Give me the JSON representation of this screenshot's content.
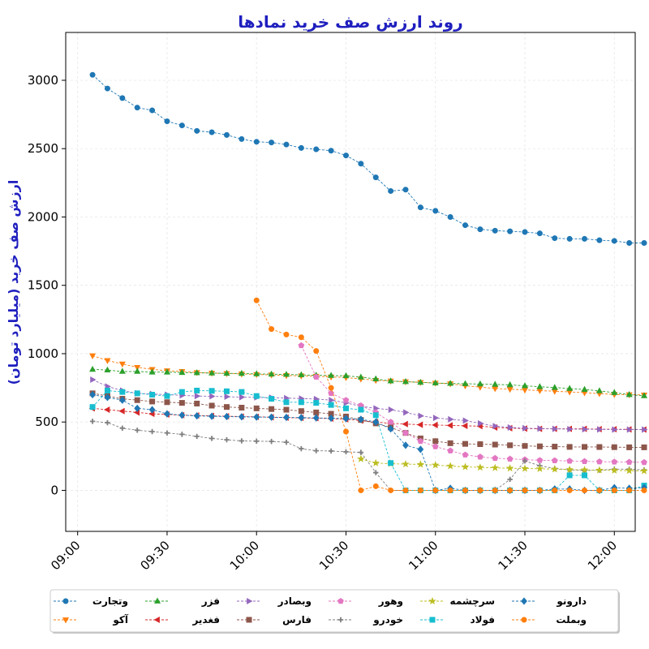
{
  "chart_data": {
    "type": "line",
    "title": "روند ارزش صف خرید نمادها",
    "ylabel": "ارزش صف خرید (میلیارد تومان)",
    "xlabel": "",
    "x_ticks": [
      "09:00",
      "09:30",
      "10:00",
      "10:30",
      "11:00",
      "11:30",
      "12:00"
    ],
    "y_ticks": [
      0,
      500,
      1000,
      1500,
      2000,
      2500,
      3000
    ],
    "xlim": [
      "08:56",
      "12:07"
    ],
    "ylim": [
      -300,
      3350
    ],
    "grid": true,
    "legend_position": "bottom",
    "series": [
      {
        "name": "وتجارت",
        "color": "#1f77b4",
        "marker": "circle",
        "x": [
          "09:05",
          "09:10",
          "09:15",
          "09:20",
          "09:25",
          "09:30",
          "09:35",
          "09:40",
          "09:45",
          "09:50",
          "09:55",
          "10:00",
          "10:05",
          "10:10",
          "10:15",
          "10:20",
          "10:25",
          "10:30",
          "10:35",
          "10:40",
          "10:45",
          "10:50",
          "10:55",
          "11:00",
          "11:05",
          "11:10",
          "11:15",
          "11:20",
          "11:25",
          "11:30",
          "11:35",
          "11:40",
          "11:45",
          "11:50",
          "11:55",
          "12:00",
          "12:05",
          "12:10"
        ],
        "y": [
          3040,
          2940,
          2870,
          2800,
          2780,
          2700,
          2670,
          2630,
          2620,
          2600,
          2570,
          2550,
          2545,
          2530,
          2505,
          2495,
          2485,
          2450,
          2390,
          2290,
          2190,
          2200,
          2070,
          2045,
          2000,
          1940,
          1910,
          1900,
          1895,
          1890,
          1880,
          1845,
          1840,
          1840,
          1830,
          1825,
          1810,
          1810
        ]
      },
      {
        "name": "آکو",
        "color": "#ff7f0e",
        "marker": "triangle-down",
        "x": [
          "09:05",
          "09:10",
          "09:15",
          "09:20",
          "09:25",
          "09:30",
          "09:35",
          "09:40",
          "09:45",
          "09:50",
          "09:55",
          "10:00",
          "10:05",
          "10:10",
          "10:15",
          "10:20",
          "10:25",
          "10:30",
          "10:35",
          "10:40",
          "10:45",
          "10:50",
          "10:55",
          "11:00",
          "11:05",
          "11:10",
          "11:15",
          "11:20",
          "11:25",
          "11:30",
          "11:35",
          "11:40",
          "11:45",
          "11:50",
          "11:55",
          "12:00",
          "12:05",
          "12:10"
        ],
        "y": [
          985,
          950,
          925,
          900,
          885,
          875,
          870,
          862,
          858,
          855,
          852,
          848,
          845,
          840,
          838,
          835,
          830,
          825,
          815,
          805,
          800,
          795,
          790,
          785,
          780,
          765,
          755,
          745,
          740,
          735,
          730,
          725,
          720,
          715,
          708,
          702,
          700,
          698
        ]
      },
      {
        "name": "فزر",
        "color": "#2ca02c",
        "marker": "triangle-up",
        "x": [
          "09:05",
          "09:10",
          "09:15",
          "09:20",
          "09:25",
          "09:30",
          "09:35",
          "09:40",
          "09:45",
          "09:50",
          "09:55",
          "10:00",
          "10:05",
          "10:10",
          "10:15",
          "10:20",
          "10:25",
          "10:30",
          "10:35",
          "10:40",
          "10:45",
          "10:50",
          "10:55",
          "11:00",
          "11:05",
          "11:10",
          "11:15",
          "11:20",
          "11:25",
          "11:30",
          "11:35",
          "11:40",
          "11:45",
          "11:50",
          "11:55",
          "12:00",
          "12:05",
          "12:10"
        ],
        "y": [
          885,
          880,
          870,
          870,
          865,
          865,
          862,
          860,
          858,
          856,
          855,
          852,
          850,
          848,
          845,
          842,
          840,
          838,
          828,
          815,
          800,
          795,
          790,
          785,
          782,
          780,
          778,
          775,
          772,
          765,
          758,
          752,
          745,
          738,
          728,
          715,
          700,
          692
        ]
      },
      {
        "name": "فغدیر",
        "color": "#d62728",
        "marker": "triangle-left",
        "x": [
          "09:05",
          "09:10",
          "09:15",
          "09:20",
          "09:25",
          "09:30",
          "09:35",
          "09:40",
          "09:45",
          "09:50",
          "09:55",
          "10:00",
          "10:05",
          "10:10",
          "10:15",
          "10:20",
          "10:25",
          "10:30",
          "10:35",
          "10:40",
          "10:45",
          "10:50",
          "10:55",
          "11:00",
          "11:05",
          "11:10",
          "11:15",
          "11:20",
          "11:25",
          "11:30",
          "11:35",
          "11:40",
          "11:45",
          "11:50",
          "11:55",
          "12:00",
          "12:05",
          "12:10"
        ],
        "y": [
          600,
          590,
          580,
          570,
          560,
          555,
          550,
          548,
          545,
          542,
          540,
          538,
          535,
          532,
          530,
          528,
          525,
          520,
          510,
          500,
          490,
          485,
          480,
          478,
          475,
          472,
          470,
          460,
          455,
          452,
          450,
          450,
          450,
          450,
          448,
          447,
          446,
          445
        ]
      },
      {
        "name": "وبصادر",
        "color": "#9467bd",
        "marker": "triangle-right",
        "x": [
          "09:05",
          "09:10",
          "09:15",
          "09:20",
          "09:25",
          "09:30",
          "09:35",
          "09:40",
          "09:45",
          "09:50",
          "09:55",
          "10:00",
          "10:05",
          "10:10",
          "10:15",
          "10:20",
          "10:25",
          "10:30",
          "10:35",
          "10:40",
          "10:45",
          "10:50",
          "10:55",
          "11:00",
          "11:05",
          "11:10",
          "11:15",
          "11:20",
          "11:25",
          "11:30",
          "11:35",
          "11:40",
          "11:45",
          "11:50",
          "11:55",
          "12:00",
          "12:05",
          "12:10"
        ],
        "y": [
          810,
          760,
          730,
          710,
          705,
          700,
          695,
          690,
          688,
          685,
          682,
          680,
          678,
          675,
          672,
          668,
          660,
          640,
          615,
          600,
          590,
          570,
          545,
          530,
          520,
          510,
          490,
          470,
          460,
          455,
          452,
          450,
          448,
          447,
          446,
          445,
          445,
          445
        ]
      },
      {
        "name": "فارس",
        "color": "#8c564b",
        "marker": "square",
        "x": [
          "09:05",
          "09:10",
          "09:15",
          "09:20",
          "09:25",
          "09:30",
          "09:35",
          "09:40",
          "09:45",
          "09:50",
          "09:55",
          "10:00",
          "10:05",
          "10:10",
          "10:15",
          "10:20",
          "10:25",
          "10:30",
          "10:35",
          "10:40",
          "10:45",
          "10:50",
          "10:55",
          "11:00",
          "11:05",
          "11:10",
          "11:15",
          "11:20",
          "11:25",
          "11:30",
          "11:35",
          "11:40",
          "11:45",
          "11:50",
          "11:55",
          "12:00",
          "12:05",
          "12:10"
        ],
        "y": [
          710,
          690,
          670,
          660,
          650,
          645,
          640,
          635,
          620,
          610,
          605,
          600,
          595,
          590,
          580,
          570,
          560,
          540,
          515,
          490,
          460,
          420,
          380,
          360,
          345,
          340,
          338,
          335,
          330,
          325,
          322,
          320,
          318,
          318,
          317,
          316,
          315,
          315
        ]
      },
      {
        "name": "وهور",
        "color": "#e377c2",
        "marker": "pentagon",
        "x": [
          "10:15",
          "10:20",
          "10:25",
          "10:30",
          "10:35",
          "10:40",
          "10:45",
          "10:50",
          "10:55",
          "11:00",
          "11:05",
          "11:10",
          "11:15",
          "11:20",
          "11:25",
          "11:30",
          "11:35",
          "11:40",
          "11:45",
          "11:50",
          "11:55",
          "12:00",
          "12:05",
          "12:10"
        ],
        "y": [
          1060,
          830,
          710,
          660,
          620,
          570,
          500,
          420,
          360,
          320,
          290,
          260,
          245,
          235,
          230,
          225,
          220,
          218,
          215,
          212,
          210,
          208,
          207,
          205
        ]
      },
      {
        "name": "خودرو",
        "color": "#7f7f7f",
        "marker": "plus",
        "x": [
          "09:05",
          "09:10",
          "09:15",
          "09:20",
          "09:25",
          "09:30",
          "09:35",
          "09:40",
          "09:45",
          "09:50",
          "09:55",
          "10:00",
          "10:05",
          "10:10",
          "10:15",
          "10:20",
          "10:25",
          "10:30",
          "10:35",
          "10:40",
          "10:45",
          "10:50",
          "10:55",
          "11:00",
          "11:05",
          "11:10",
          "11:15",
          "11:20",
          "11:25",
          "11:30",
          "11:35",
          "11:40",
          "11:45",
          "11:50",
          "11:55",
          "12:00",
          "12:05",
          "12:10"
        ],
        "y": [
          505,
          495,
          455,
          440,
          430,
          420,
          410,
          395,
          380,
          370,
          362,
          360,
          358,
          352,
          305,
          290,
          288,
          282,
          278,
          130,
          0,
          0,
          0,
          0,
          0,
          0,
          0,
          0,
          80,
          215,
          180,
          160,
          150,
          145,
          148,
          155,
          155,
          150
        ]
      },
      {
        "name": "سرچشمه",
        "color": "#bcbd22",
        "marker": "star",
        "x": [
          "10:35",
          "10:40",
          "10:45",
          "10:50",
          "10:55",
          "11:00",
          "11:05",
          "11:10",
          "11:15",
          "11:20",
          "11:25",
          "11:30",
          "11:35",
          "11:40",
          "11:45",
          "11:50",
          "11:55",
          "12:00",
          "12:05",
          "12:10"
        ],
        "y": [
          230,
          200,
          195,
          192,
          190,
          185,
          178,
          172,
          168,
          165,
          162,
          160,
          158,
          155,
          152,
          150,
          148,
          146,
          144,
          142
        ]
      },
      {
        "name": "فولاد",
        "color": "#17becf",
        "marker": "square",
        "x": [
          "09:05",
          "09:10",
          "09:15",
          "09:20",
          "09:25",
          "09:30",
          "09:35",
          "09:40",
          "09:45",
          "09:50",
          "09:55",
          "10:00",
          "10:05",
          "10:10",
          "10:15",
          "10:20",
          "10:25",
          "10:30",
          "10:35",
          "10:40",
          "10:45",
          "10:50",
          "10:55",
          "11:00",
          "11:05",
          "11:10",
          "11:15",
          "11:20",
          "11:25",
          "11:30",
          "11:35",
          "11:40",
          "11:45",
          "11:50",
          "11:55",
          "12:00",
          "12:05",
          "12:10"
        ],
        "y": [
          610,
          730,
          720,
          710,
          700,
          690,
          720,
          730,
          728,
          725,
          720,
          690,
          670,
          645,
          645,
          640,
          625,
          600,
          590,
          550,
          200,
          0,
          0,
          0,
          0,
          0,
          0,
          0,
          0,
          0,
          0,
          0,
          110,
          110,
          0,
          0,
          0,
          35
        ]
      },
      {
        "name": "دارونو",
        "color": "#1f77b4",
        "marker": "diamond",
        "x": [
          "09:05",
          "09:10",
          "09:15",
          "09:20",
          "09:25",
          "09:30",
          "09:35",
          "09:40",
          "09:45",
          "09:50",
          "09:55",
          "10:00",
          "10:05",
          "10:10",
          "10:15",
          "10:20",
          "10:25",
          "10:30",
          "10:35",
          "10:40",
          "10:45",
          "10:50",
          "10:55",
          "11:00",
          "11:05",
          "11:10",
          "11:15",
          "11:20",
          "11:25",
          "11:30",
          "11:35",
          "11:40",
          "11:45",
          "11:50",
          "11:55",
          "12:00",
          "12:05",
          "12:10"
        ],
        "y": [
          700,
          680,
          660,
          600,
          590,
          560,
          550,
          545,
          542,
          540,
          538,
          536,
          535,
          534,
          532,
          530,
          528,
          525,
          520,
          500,
          450,
          330,
          300,
          0,
          15,
          0,
          0,
          0,
          0,
          0,
          0,
          10,
          10,
          0,
          0,
          20,
          15,
          20
        ]
      },
      {
        "name": "وبملت",
        "color": "#ff7f0e",
        "marker": "circle",
        "x": [
          "10:00",
          "10:05",
          "10:10",
          "10:15",
          "10:20",
          "10:25",
          "10:30",
          "10:35",
          "10:40",
          "10:45",
          "10:50",
          "10:55",
          "11:00",
          "11:05",
          "11:10",
          "11:15",
          "11:20",
          "11:25",
          "11:30",
          "11:35",
          "11:40",
          "11:45",
          "11:50",
          "11:55",
          "12:00",
          "12:05",
          "12:10"
        ],
        "y": [
          1390,
          1180,
          1140,
          1120,
          1020,
          750,
          430,
          0,
          30,
          0,
          0,
          0,
          0,
          0,
          0,
          0,
          0,
          0,
          0,
          0,
          0,
          0,
          0,
          0,
          0,
          0,
          0
        ]
      }
    ]
  }
}
